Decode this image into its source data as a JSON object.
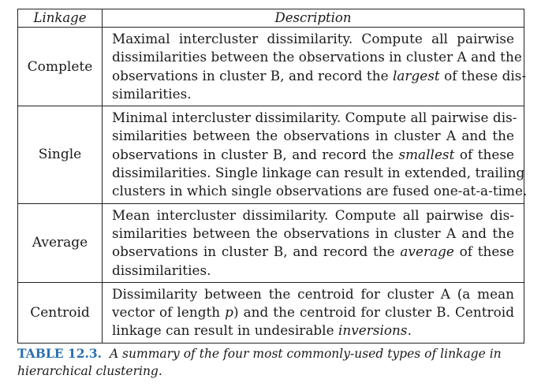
{
  "table": {
    "headers": {
      "linkage": "Linkage",
      "description": "Description"
    },
    "rows": [
      {
        "linkage": "Complete",
        "lines": [
          {
            "pre": "Maximal intercluster dissimilarity. Compute all pairwise"
          },
          {
            "pre": "dissimilarities between the observations in cluster A and the"
          },
          {
            "pre": "observations in cluster B, and record the ",
            "em": "largest",
            "post": " of these dis-"
          },
          {
            "pre": "similarities."
          }
        ]
      },
      {
        "linkage": "Single",
        "lines": [
          {
            "pre": "Minimal intercluster dissimilarity. Compute all pairwise dis-"
          },
          {
            "pre": "similarities between the observations in cluster A and the"
          },
          {
            "pre": "observations in cluster B, and record the ",
            "em": "smallest",
            "post": " of these"
          },
          {
            "pre": "dissimilarities. Single linkage can result in extended, trailing"
          },
          {
            "pre": "clusters in which single observations are fused one-at-a-time."
          }
        ]
      },
      {
        "linkage": "Average",
        "lines": [
          {
            "pre": "Mean intercluster dissimilarity. Compute all pairwise dis-"
          },
          {
            "pre": "similarities between the observations in cluster A and the"
          },
          {
            "pre": "observations in cluster B, and record the ",
            "em": "average",
            "post": " of these"
          },
          {
            "pre": "dissimilarities."
          }
        ]
      },
      {
        "linkage": "Centroid",
        "lines": [
          {
            "pre": "Dissimilarity between the centroid for cluster A (a mean"
          },
          {
            "pre": "vector of length ",
            "em": "p",
            "post": ") and the centroid for cluster B. Centroid"
          },
          {
            "pre": "linkage can result in undesirable ",
            "em": "inversions",
            "post": "."
          }
        ]
      }
    ]
  },
  "caption": {
    "label": "TABLE 12.3.",
    "text": "A summary of the four most commonly-used types of linkage in hierarchical clustering."
  }
}
